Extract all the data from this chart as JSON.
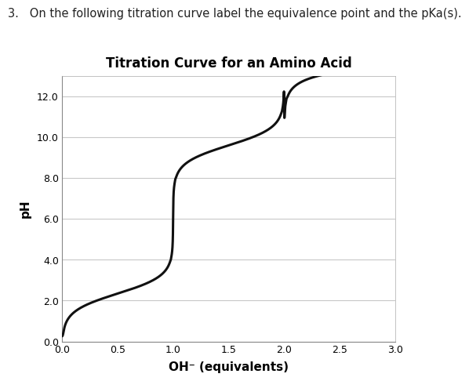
{
  "title": "Titration Curve for an Amino Acid",
  "xlabel": "OH⁻ (equivalents)",
  "ylabel": "pH",
  "xlim": [
    0.0,
    3.0
  ],
  "ylim": [
    0.0,
    13.0
  ],
  "xticks": [
    0.0,
    0.5,
    1.0,
    1.5,
    2.0,
    2.5,
    3.0
  ],
  "yticks": [
    0.0,
    2.0,
    4.0,
    6.0,
    8.0,
    10.0,
    12.0
  ],
  "line_color": "#111111",
  "line_width": 2.2,
  "background_color": "#ffffff",
  "grid_color": "#c8c8c8",
  "title_fontsize": 12,
  "axis_label_fontsize": 11,
  "tick_fontsize": 9,
  "question_text": "3.   On the following titration curve label the equivalence point and the pKa(s).",
  "question_fontsize": 10.5,
  "pka1": 2.34,
  "pka2": 9.6,
  "ep1_x": 1.0,
  "ep2_x": 2.0
}
